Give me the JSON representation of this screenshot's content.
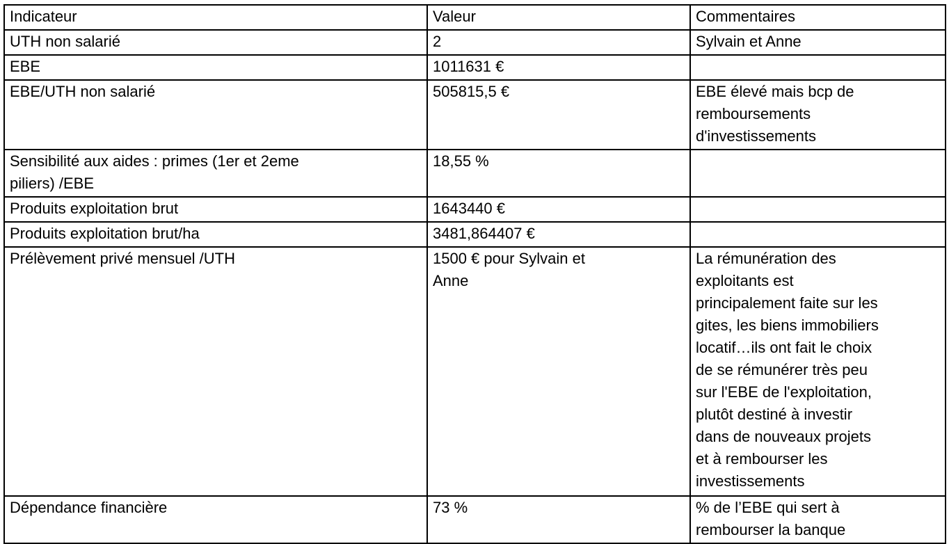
{
  "colors": {
    "value-blue": "#4a6ce8",
    "text-black": "#000000"
  },
  "table": {
    "headers": {
      "indicator": "Indicateur",
      "value": "Valeur",
      "comment": "Commentaires"
    },
    "rows": [
      {
        "indicator": "UTH non salarié",
        "value": "2",
        "comment": "Sylvain et Anne"
      },
      {
        "indicator": "EBE",
        "value": "1011631 €",
        "comment": ""
      },
      {
        "indicator": "EBE/UTH non salarié",
        "value": "505815,5 €",
        "comment": "EBE élevé mais bcp de\nremboursements\nd'investissements"
      },
      {
        "indicator": "Sensibilité aux aides : primes (1er et 2eme\npiliers) /EBE",
        "value": "18,55 %",
        "comment": ""
      },
      {
        "indicator": "Produits exploitation brut",
        "value": "1643440 €",
        "comment": ""
      },
      {
        "indicator": "Produits exploitation brut/ha",
        "value": "3481,864407 €",
        "comment": ""
      },
      {
        "indicator": "Prélèvement privé mensuel /UTH",
        "value": "1500 € pour Sylvain et\nAnne",
        "comment": "La rémunération des\nexploitants est\nprincipalement faite sur les\ngites, les biens immobiliers\nlocatif…ils ont fait le choix\nde se rémunérer très peu\nsur l'EBE de l'exploitation,\nplutôt destiné à investir\ndans de nouveaux projets\net à rembourser les\ninvestissements"
      },
      {
        "indicator": "Dépendance financière",
        "value": "73 %",
        "comment": "% de l’EBE qui sert à\nrembourser la banque"
      }
    ]
  }
}
